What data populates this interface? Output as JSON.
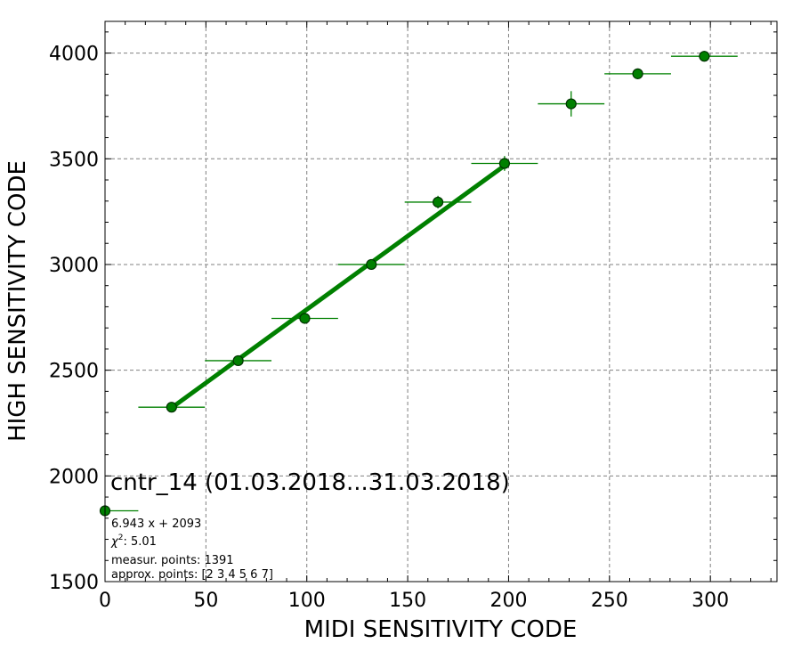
{
  "chart_data": {
    "type": "scatter",
    "title": "",
    "xlabel": "MIDI SENSITIVITY CODE",
    "ylabel": "HIGH SENSITIVITY CODE",
    "xlim": [
      0,
      333
    ],
    "ylim": [
      1500,
      4150
    ],
    "xticks": [
      0,
      50,
      100,
      150,
      200,
      250,
      300
    ],
    "yticks": [
      1500,
      2000,
      2500,
      3000,
      3500,
      4000
    ],
    "grid": true,
    "colors": {
      "points": "#008000",
      "point_edge": "#003300",
      "fit": "#008000"
    },
    "series": [
      {
        "x": [
          0,
          33,
          66,
          99,
          132,
          165,
          198,
          231,
          264,
          297
        ],
        "y": [
          1835,
          2325,
          2545,
          2745,
          3000,
          3295,
          3478,
          3760,
          3902,
          3985
        ],
        "x_err": [
          16.5,
          16.5,
          16.5,
          16.5,
          16.5,
          16.5,
          16.5,
          16.5,
          16.5,
          16.5
        ],
        "y_err": [
          8,
          12,
          12,
          15,
          20,
          30,
          35,
          60,
          25,
          25
        ]
      }
    ],
    "fit_line": {
      "x": [
        33,
        198
      ],
      "slope": 6.943,
      "intercept": 2093
    },
    "annotations": {
      "channel": "cntr_14 (01.03.2018...31.03.2018)",
      "equation": "6.943 x + 2093",
      "chi2_label": "χ",
      "chi2_power": "2",
      "chi2_value": ": 5.01",
      "measured": "measur. points: 1391",
      "approx": "approx. points: [2 3 4 5 6 7]"
    }
  }
}
